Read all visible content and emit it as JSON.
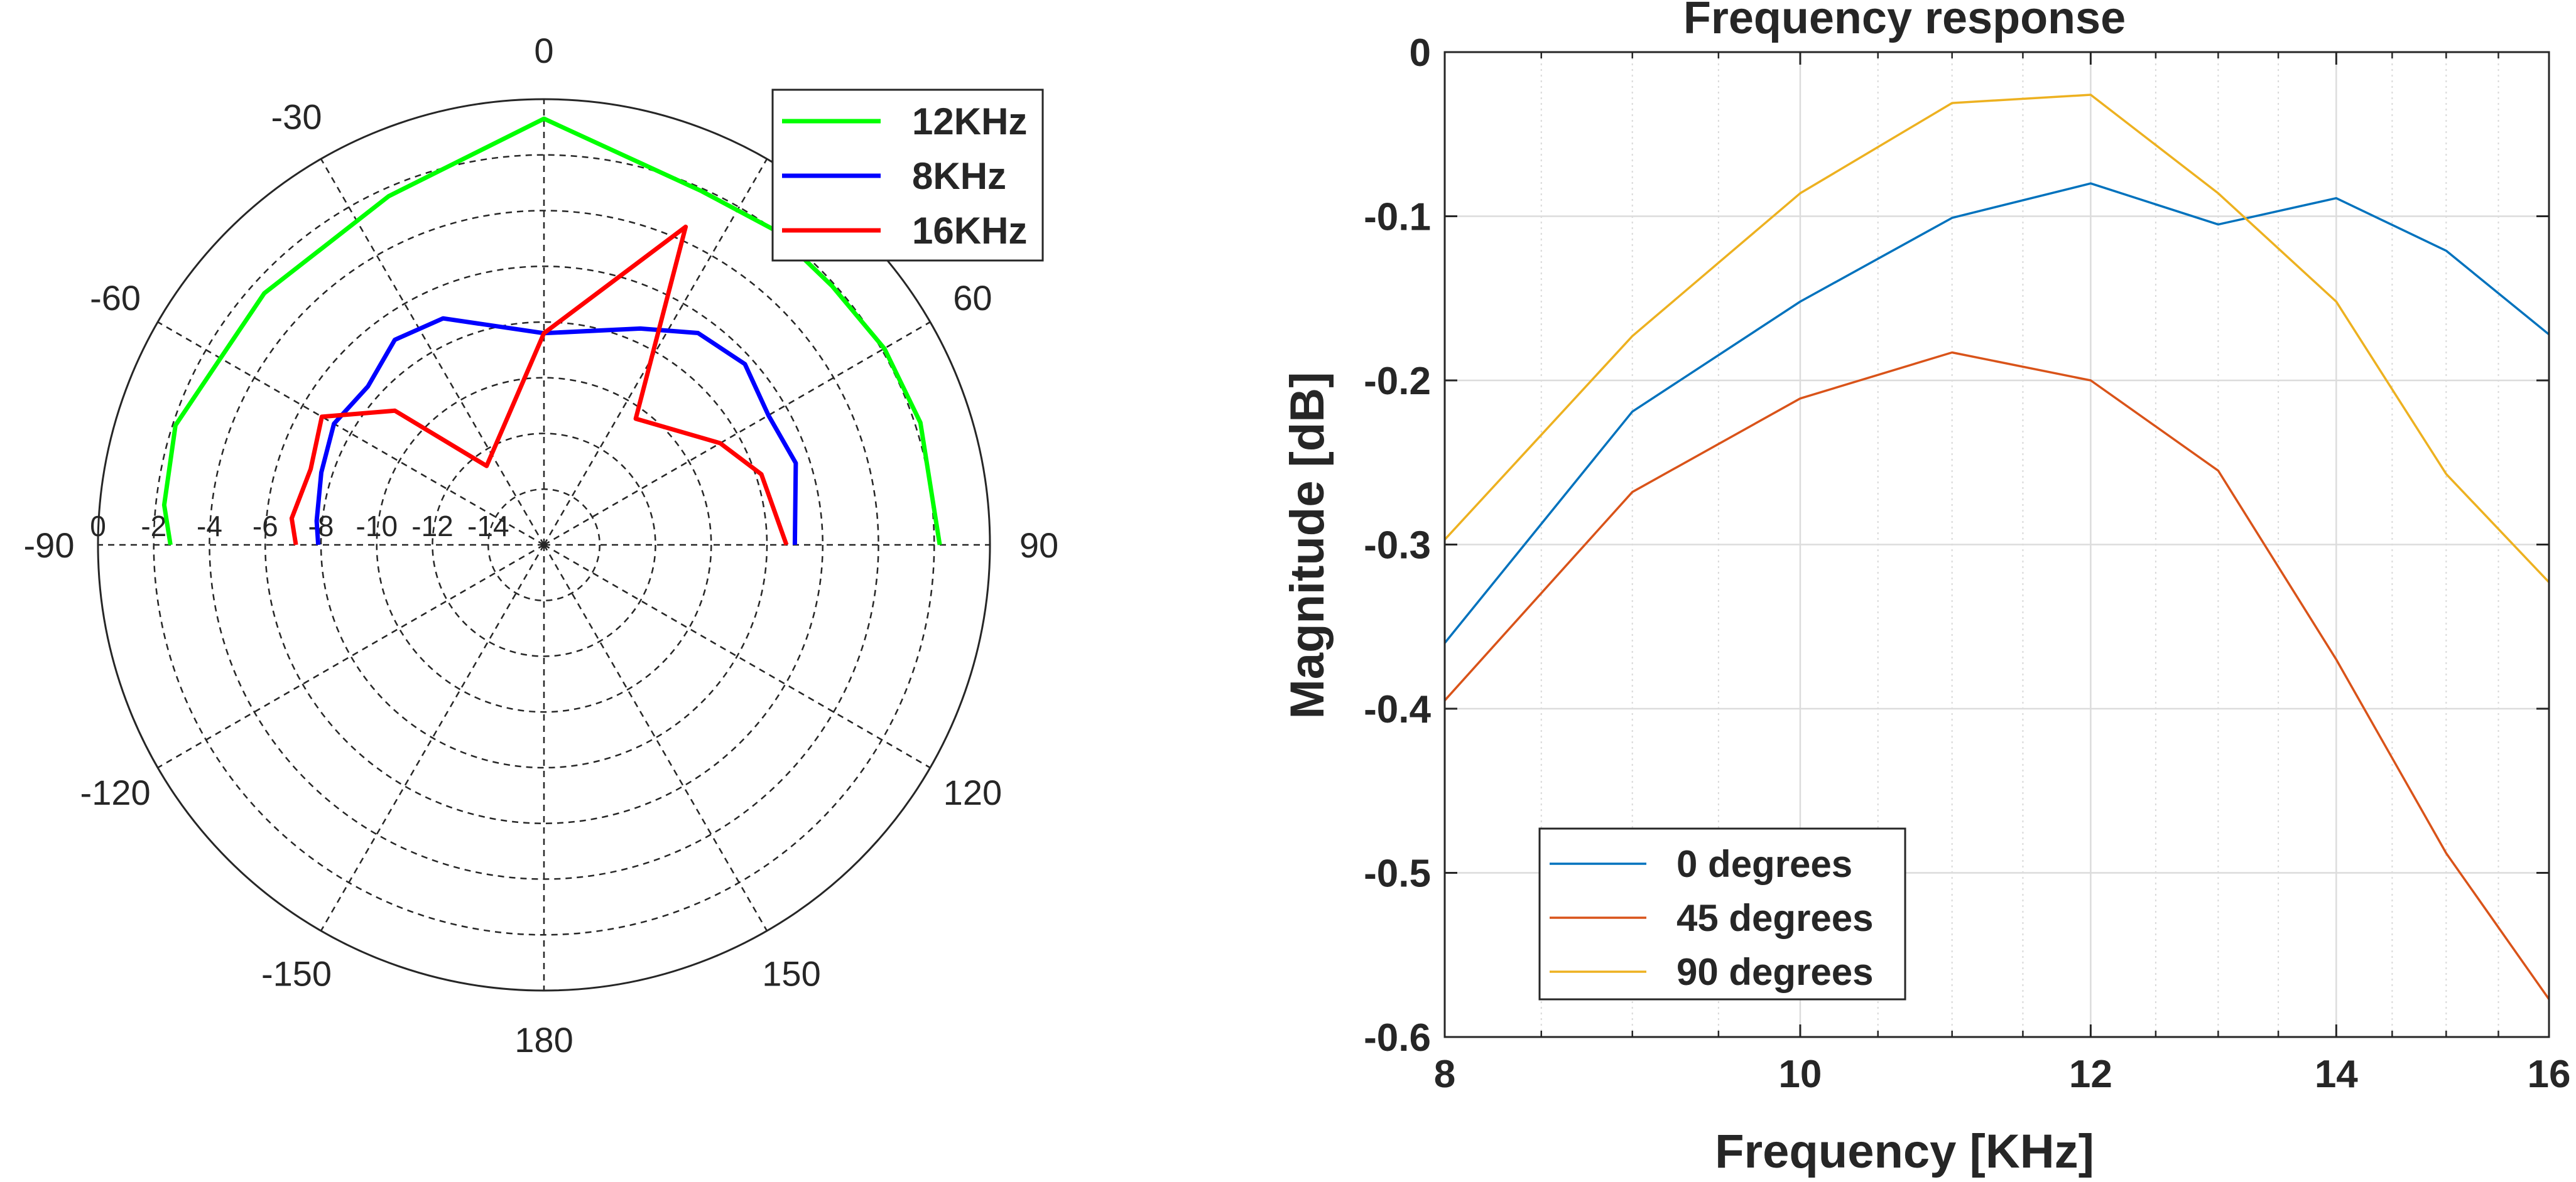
{
  "chart_data": [
    {
      "type": "polar",
      "angle_ticks": [
        "0",
        "30",
        "60",
        "90",
        "120",
        "150",
        "180",
        "-150",
        "-120",
        "-90",
        "-60",
        "-30"
      ],
      "angle_tick_values": [
        0,
        30,
        60,
        90,
        120,
        150,
        180,
        -150,
        -120,
        -90,
        -60,
        -30
      ],
      "radial_ticks": [
        "0",
        "-2",
        "-4",
        "-6",
        "-8",
        "-10",
        "-12",
        "-14"
      ],
      "radial_tick_values": [
        0,
        -2,
        -4,
        -6,
        -8,
        -10,
        -12,
        -14
      ],
      "rlim": [
        -16,
        0
      ],
      "theta_zero": "top",
      "theta_direction": "clockwise",
      "grid": true,
      "legend_position": "top-right",
      "series": [
        {
          "name": "12KHz",
          "color": "#00ff00",
          "theta": [
            -90,
            -84,
            -72,
            -60,
            -48,
            -36,
            -24,
            0,
            24,
            36,
            48,
            60,
            72,
            90
          ],
          "r": [
            -2.6,
            -2.3,
            -2.1,
            -2.6,
            -2.5,
            -2.7,
            -2.3,
            -0.7,
            -2.1,
            -2.0,
            -2.1,
            -1.9,
            -1.8,
            -1.8
          ]
        },
        {
          "name": "8KHz",
          "color": "#0000ff",
          "theta": [
            -90,
            -84,
            -72,
            -60,
            -48,
            -36,
            -24,
            0,
            24,
            36,
            48,
            60,
            72,
            90
          ],
          "r": [
            -7.9,
            -7.8,
            -7.6,
            -7.3,
            -7.5,
            -6.9,
            -7.1,
            -8.4,
            -7.5,
            -6.6,
            -6.3,
            -6.7,
            -6.5,
            -7.0
          ]
        },
        {
          "name": "16KHz",
          "color": "#ff0000",
          "theta": [
            -90,
            -84,
            -72,
            -60,
            -48,
            -36,
            0,
            24,
            36,
            60,
            72,
            90
          ],
          "r": [
            -7.1,
            -6.9,
            -7.2,
            -6.8,
            -8.8,
            -12.5,
            -8.4,
            -3.5,
            -10.4,
            -8.7,
            -7.8,
            -7.3
          ]
        }
      ]
    },
    {
      "type": "line",
      "title": "Frequency response",
      "xlabel": "Frequency [KHz]",
      "ylabel": "Magnitude [dB]",
      "xscale": "log",
      "xlim": [
        8,
        16
      ],
      "ylim": [
        -0.6,
        0
      ],
      "xticks": [
        8,
        10,
        12,
        14,
        16
      ],
      "yticks": [
        0,
        -0.1,
        -0.2,
        -0.3,
        -0.4,
        -0.5,
        -0.6
      ],
      "xtick_labels": [
        "8",
        "10",
        "12",
        "14",
        "16"
      ],
      "ytick_labels": [
        "0",
        "-0.1",
        "-0.2",
        "-0.3",
        "-0.4",
        "-0.5",
        "-0.6"
      ],
      "grid": true,
      "legend_position": "bottom-left",
      "x": [
        8,
        9,
        10,
        11,
        12,
        13,
        14,
        15,
        16
      ],
      "series": [
        {
          "name": "0 degrees",
          "color": "#0072bd",
          "values": [
            -0.36,
            -0.219,
            -0.152,
            -0.101,
            -0.08,
            -0.105,
            -0.089,
            -0.121,
            -0.172
          ]
        },
        {
          "name": "45 degrees",
          "color": "#d95319",
          "values": [
            -0.395,
            -0.268,
            -0.211,
            -0.183,
            -0.2,
            -0.255,
            -0.37,
            -0.488,
            -0.577
          ]
        },
        {
          "name": "90 degrees",
          "color": "#edb120",
          "values": [
            -0.297,
            -0.173,
            -0.086,
            -0.031,
            -0.026,
            -0.086,
            -0.152,
            -0.257,
            -0.323
          ]
        }
      ]
    }
  ]
}
